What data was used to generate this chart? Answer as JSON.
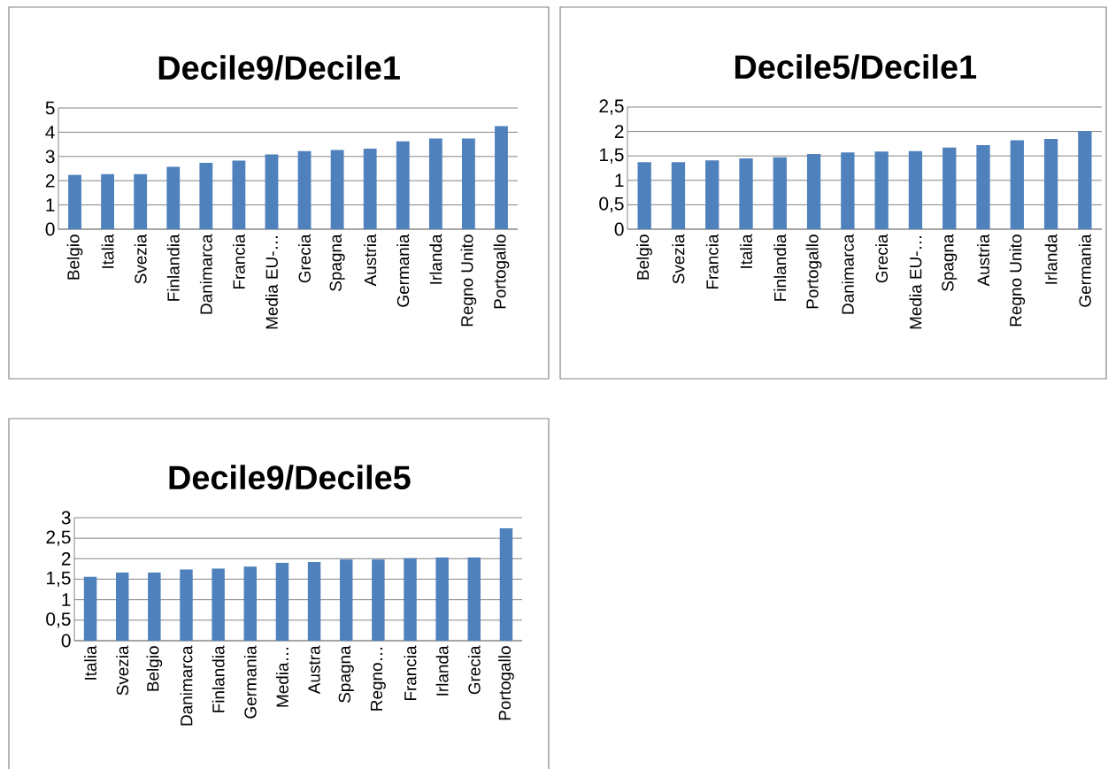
{
  "chart_data": [
    {
      "type": "bar",
      "title": "Decile9/Decile1",
      "categories": [
        "Belgio",
        "Italia",
        "Svezia",
        "Finlandia",
        "Danimarca",
        "Francia",
        "Media EU-…",
        "Grecia",
        "Spagna",
        "Austria",
        "Germania",
        "Irlanda",
        "Regno Unito",
        "Portogallo"
      ],
      "values": [
        2.24,
        2.27,
        2.27,
        2.57,
        2.74,
        2.83,
        3.08,
        3.22,
        3.27,
        3.32,
        3.62,
        3.74,
        3.74,
        4.25
      ],
      "color": "#4f81bd",
      "ylim": [
        0,
        5
      ],
      "yticks": [
        0,
        1,
        2,
        3,
        4,
        5
      ],
      "grid": "y"
    },
    {
      "type": "bar",
      "title": "Decile5/Decile1",
      "categories": [
        "Belgio",
        "Svezia",
        "Francia",
        "Italia",
        "Finlandia",
        "Portogallo",
        "Danimarca",
        "Grecia",
        "Media EU-…",
        "Spagna",
        "Austria",
        "Regno Unito",
        "Irlanda",
        "Germania"
      ],
      "values": [
        1.37,
        1.37,
        1.41,
        1.45,
        1.47,
        1.54,
        1.57,
        1.59,
        1.6,
        1.67,
        1.72,
        1.82,
        1.85,
        2.01
      ],
      "color": "#4f81bd",
      "ylim": [
        0,
        2.5
      ],
      "yticks": [
        0,
        {
          "value": 0.5,
          "label": "0,5"
        },
        1,
        {
          "value": 1.5,
          "label": "1,5"
        },
        2,
        {
          "value": 2.5,
          "label": "2,5"
        }
      ],
      "grid": "y"
    },
    {
      "type": "bar",
      "title": "Decile9/Decile5",
      "categories": [
        "Italia",
        "Svezia",
        "Belgio",
        "Danimarca",
        "Finlandia",
        "Germania",
        "Media…",
        "Austra",
        "Spagna",
        "Regno…",
        "Francia",
        "Irlanda",
        "Grecia",
        "Portogallo"
      ],
      "values": [
        1.56,
        1.66,
        1.66,
        1.74,
        1.76,
        1.81,
        1.9,
        1.92,
        1.98,
        1.98,
        2.01,
        2.03,
        2.03,
        2.74
      ],
      "color": "#4f81bd",
      "ylim": [
        0,
        3
      ],
      "yticks": [
        0,
        {
          "value": 0.5,
          "label": "0,5"
        },
        1,
        {
          "value": 1.5,
          "label": "1,5"
        },
        2,
        {
          "value": 2.5,
          "label": "2,5"
        },
        3
      ],
      "grid": "y"
    }
  ]
}
